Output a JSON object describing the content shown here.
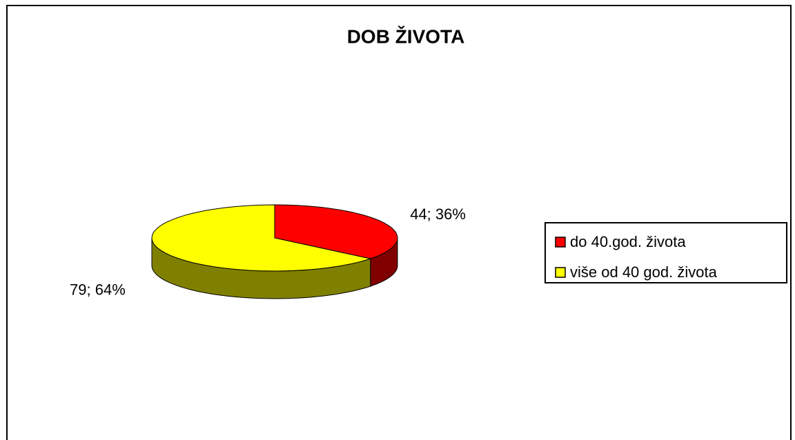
{
  "chart_data": {
    "type": "pie",
    "title": "DOB ŽIVOTA",
    "categories": [
      "do 40.god. života",
      "više od 40 god. života"
    ],
    "values": [
      44,
      79
    ],
    "value_labels": [
      "44; 36%",
      "79; 64%"
    ],
    "colors": [
      "#ff0000",
      "#ffff00"
    ],
    "side_colors": [
      "#800000",
      "#808000"
    ],
    "legend": "right"
  }
}
